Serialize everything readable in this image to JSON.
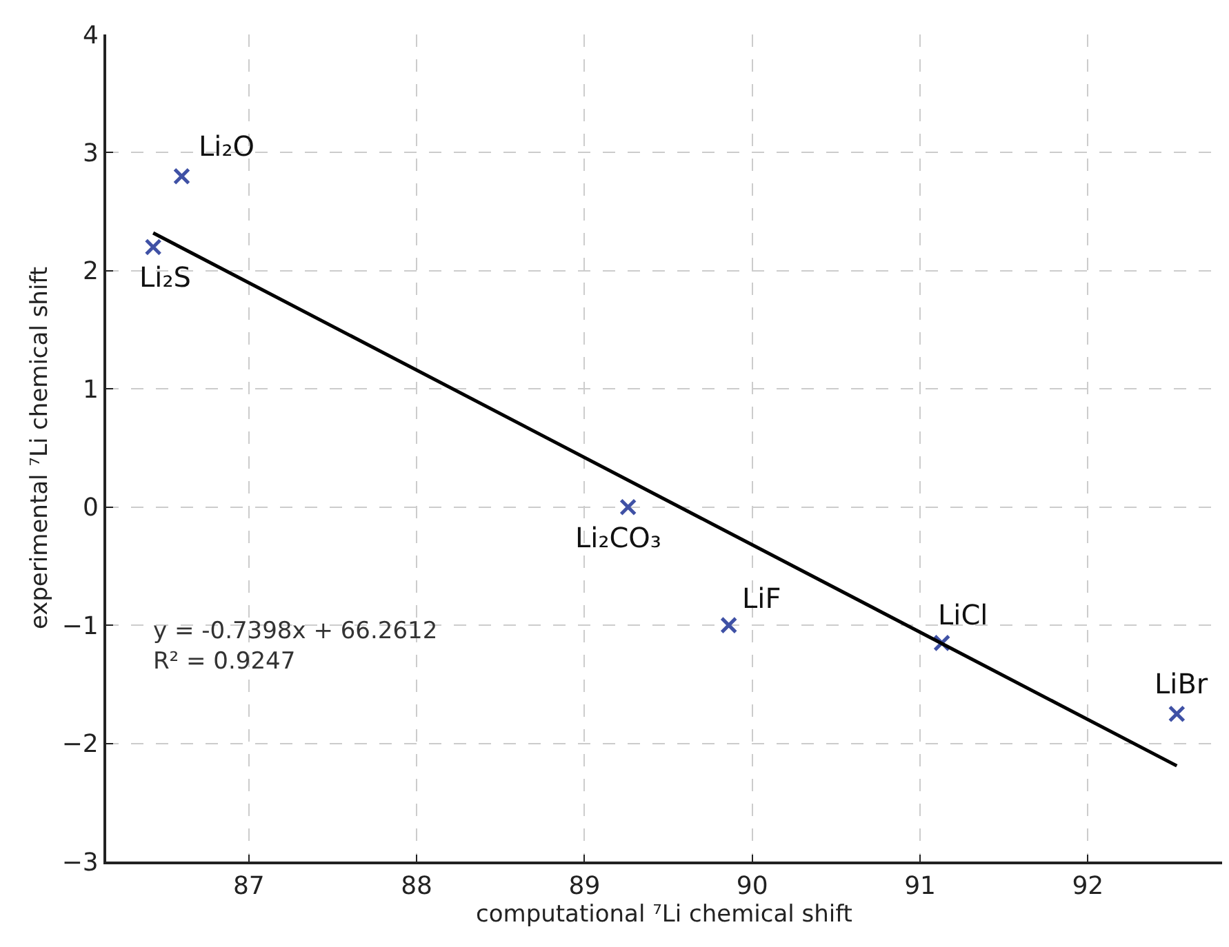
{
  "chart_data": {
    "type": "scatter",
    "xlabel": "computational ⁷Li chemical shift",
    "ylabel": "experimental ⁷Li chemical shift",
    "xlim": [
      86.15,
      92.8
    ],
    "xticks": [
      87,
      88,
      89,
      90,
      91,
      92
    ],
    "ylim": [
      -3,
      4
    ],
    "yticks": [
      -3,
      -2,
      -1,
      0,
      1,
      2,
      3,
      4
    ],
    "grid": true,
    "marker": "cross",
    "series": [
      {
        "color": "#3f51a5",
        "x": [
          86.6,
          86.43,
          89.26,
          89.86,
          91.13,
          92.53
        ],
        "values": [
          2.8,
          2.2,
          0,
          -1,
          -1.15,
          -1.75
        ]
      },
      {
        "type": "line",
        "color": "#000000",
        "x": [
          86.43,
          92.53
        ],
        "values": [
          2.32,
          -2.19
        ],
        "marker": "none"
      }
    ],
    "annotations": [
      {
        "text": "Li₂O",
        "x": 86.6,
        "y": 2.8
      },
      {
        "text": "Li₂S",
        "x": 86.43,
        "y": 2.2
      },
      {
        "text": "Li₂CO₃",
        "x": 89.26,
        "y": 0
      },
      {
        "text": "LiF",
        "x": 89.86,
        "y": -1
      },
      {
        "text": "LiCl",
        "x": 91.13,
        "y": -1.15
      },
      {
        "text": "LiBr",
        "x": 92.53,
        "y": -1.75
      },
      "y = -0.7398x + 66.2612\nR² = 0.9247"
    ]
  }
}
